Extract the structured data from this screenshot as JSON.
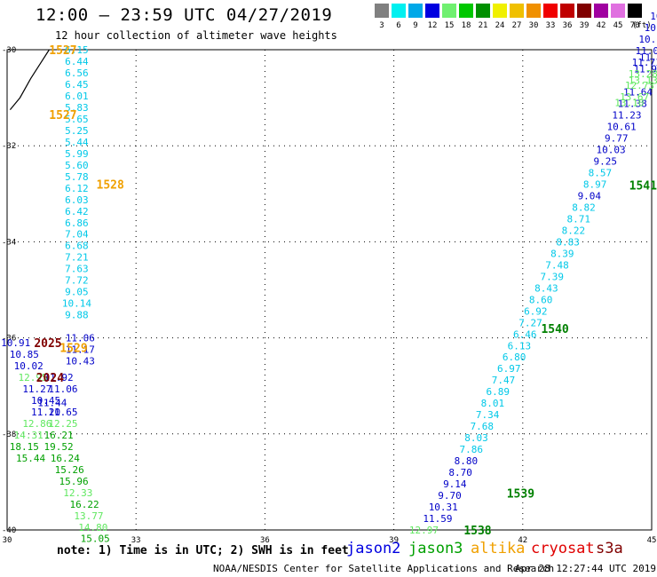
{
  "header": {
    "title": "12:00 – 23:59 UTC 04/27/2019",
    "subtitle": "12 hour collection of altimeter wave heights"
  },
  "color_scale": {
    "unit": "(ft)",
    "bins": [
      {
        "label": "3",
        "color": "#808080"
      },
      {
        "label": "6",
        "color": "#00f0f0"
      },
      {
        "label": "9",
        "color": "#00a8e8"
      },
      {
        "label": "12",
        "color": "#0000e0"
      },
      {
        "label": "15",
        "color": "#70f070"
      },
      {
        "label": "18",
        "color": "#00c800"
      },
      {
        "label": "21",
        "color": "#009000"
      },
      {
        "label": "24",
        "color": "#f0f000"
      },
      {
        "label": "27",
        "color": "#f0c000"
      },
      {
        "label": "30",
        "color": "#f09000"
      },
      {
        "label": "33",
        "color": "#f00000"
      },
      {
        "label": "36",
        "color": "#c00000"
      },
      {
        "label": "39",
        "color": "#800000"
      },
      {
        "label": "42",
        "color": "#a000a0"
      },
      {
        "label": "45",
        "color": "#e070e0"
      },
      {
        "label": "70",
        "color": "#000000"
      }
    ]
  },
  "axes": {
    "lon_ticks": [
      "30",
      "33",
      "36",
      "39",
      "42",
      "45"
    ],
    "lat_ticks": [
      "-30",
      "-32",
      "-34",
      "-36",
      "-38",
      "-40"
    ],
    "lon_range": [
      30,
      45
    ],
    "lat_range": [
      -40,
      -30
    ]
  },
  "colors": {
    "cyan": "#00c8e8",
    "blue": "#0000c8",
    "lightgreen": "#60e860",
    "green": "#00a000",
    "darkgreen": "#008000",
    "orange": "#f0a000",
    "darkred": "#800000"
  },
  "passes": [
    {
      "lon": 31.62,
      "lat": -30.0,
      "lat_step": -0.24,
      "color": "cyan",
      "values": [
        "6.15",
        "6.44",
        "6.56",
        "6.45",
        "6.01",
        "5.83",
        "5.65",
        "5.25",
        "5.44",
        "5.99",
        "5.60",
        "5.78",
        "6.12",
        "6.03",
        "6.42",
        "6.86",
        "7.04",
        "6.68",
        "7.21",
        "7.63",
        "7.72",
        "9.05",
        "10.14",
        "9.88"
      ]
    },
    {
      "lon": 31.7,
      "lat": -36.0,
      "lat_step": -0.24,
      "color": "blue",
      "values": [
        "11.06",
        "11.17",
        "10.43"
      ]
    }
  ],
  "left_cluster": [
    {
      "lon": 30.2,
      "lat": -36.1,
      "value": "10.91",
      "color": "blue"
    },
    {
      "lon": 30.4,
      "lat": -36.34,
      "value": "10.85",
      "color": "blue"
    },
    {
      "lon": 30.5,
      "lat": -36.58,
      "value": "10.02",
      "color": "blue"
    },
    {
      "lon": 30.6,
      "lat": -36.82,
      "value": "12.95",
      "color": "lightgreen"
    },
    {
      "lon": 31.2,
      "lat": -36.82,
      "value": "11.92",
      "color": "blue"
    },
    {
      "lon": 30.7,
      "lat": -37.06,
      "value": "11.27",
      "color": "blue"
    },
    {
      "lon": 31.3,
      "lat": -37.06,
      "value": "11.06",
      "color": "blue"
    },
    {
      "lon": 30.9,
      "lat": -37.3,
      "value": "10.45",
      "color": "blue"
    },
    {
      "lon": 31.05,
      "lat": -37.35,
      "value": "11.44",
      "color": "blue"
    },
    {
      "lon": 30.9,
      "lat": -37.54,
      "value": "11.20",
      "color": "blue"
    },
    {
      "lon": 31.3,
      "lat": -37.54,
      "value": "11.65",
      "color": "blue"
    },
    {
      "lon": 30.7,
      "lat": -37.78,
      "value": "12.86",
      "color": "lightgreen"
    },
    {
      "lon": 31.3,
      "lat": -37.78,
      "value": "12.25",
      "color": "lightgreen"
    },
    {
      "lon": 30.5,
      "lat": -38.02,
      "value": "14.31",
      "color": "lightgreen"
    },
    {
      "lon": 31.2,
      "lat": -38.02,
      "value": "16.21",
      "color": "green"
    },
    {
      "lon": 30.4,
      "lat": -38.26,
      "value": "18.15",
      "color": "green"
    },
    {
      "lon": 31.2,
      "lat": -38.26,
      "value": "19.52",
      "color": "green"
    },
    {
      "lon": 30.55,
      "lat": -38.5,
      "value": "15.44",
      "color": "green"
    },
    {
      "lon": 31.35,
      "lat": -38.5,
      "value": "16.24",
      "color": "green"
    },
    {
      "lon": 31.45,
      "lat": -38.74,
      "value": "15.26",
      "color": "green"
    },
    {
      "lon": 31.55,
      "lat": -38.98,
      "value": "15.96",
      "color": "green"
    },
    {
      "lon": 31.65,
      "lat": -39.22,
      "value": "12.33",
      "color": "lightgreen"
    },
    {
      "lon": 31.8,
      "lat": -39.46,
      "value": "16.22",
      "color": "green"
    },
    {
      "lon": 31.9,
      "lat": -39.7,
      "value": "13.77",
      "color": "lightgreen"
    },
    {
      "lon": 32.0,
      "lat": -39.94,
      "value": "14.80",
      "color": "lightgreen"
    },
    {
      "lon": 32.05,
      "lat": -40.18,
      "value": "15.05",
      "color": "green"
    }
  ],
  "right_track": [
    {
      "lon": 39.7,
      "lat": -40.0,
      "value": "12.97",
      "color": "lightgreen"
    },
    {
      "lon": 40.02,
      "lat": -39.76,
      "value": "11.59",
      "color": "blue"
    },
    {
      "lon": 40.15,
      "lat": -39.52,
      "value": "10.31",
      "color": "blue"
    },
    {
      "lon": 40.3,
      "lat": -39.28,
      "value": "9.70",
      "color": "blue"
    },
    {
      "lon": 40.42,
      "lat": -39.04,
      "value": "9.14",
      "color": "blue"
    },
    {
      "lon": 40.55,
      "lat": -38.8,
      "value": "8.70",
      "color": "blue"
    },
    {
      "lon": 40.68,
      "lat": -38.56,
      "value": "8.80",
      "color": "blue"
    },
    {
      "lon": 40.8,
      "lat": -38.32,
      "value": "7.86",
      "color": "cyan"
    },
    {
      "lon": 40.92,
      "lat": -38.08,
      "value": "8.03",
      "color": "cyan"
    },
    {
      "lon": 41.05,
      "lat": -37.84,
      "value": "7.68",
      "color": "cyan"
    },
    {
      "lon": 41.18,
      "lat": -37.6,
      "value": "7.34",
      "color": "cyan"
    },
    {
      "lon": 41.3,
      "lat": -37.36,
      "value": "8.01",
      "color": "cyan"
    },
    {
      "lon": 41.42,
      "lat": -37.12,
      "value": "6.89",
      "color": "cyan"
    },
    {
      "lon": 41.55,
      "lat": -36.88,
      "value": "7.47",
      "color": "cyan"
    },
    {
      "lon": 41.68,
      "lat": -36.64,
      "value": "6.97",
      "color": "cyan"
    },
    {
      "lon": 41.8,
      "lat": -36.4,
      "value": "6.80",
      "color": "cyan"
    },
    {
      "lon": 41.92,
      "lat": -36.16,
      "value": "6.13",
      "color": "cyan"
    },
    {
      "lon": 42.05,
      "lat": -35.92,
      "value": "6.46",
      "color": "cyan"
    },
    {
      "lon": 42.18,
      "lat": -35.68,
      "value": "7.27",
      "color": "cyan"
    },
    {
      "lon": 42.3,
      "lat": -35.44,
      "value": "6.92",
      "color": "cyan"
    },
    {
      "lon": 42.42,
      "lat": -35.2,
      "value": "8.60",
      "color": "cyan"
    },
    {
      "lon": 42.55,
      "lat": -34.96,
      "value": "8.43",
      "color": "cyan"
    },
    {
      "lon": 42.68,
      "lat": -34.72,
      "value": "7.39",
      "color": "cyan"
    },
    {
      "lon": 42.8,
      "lat": -34.48,
      "value": "7.48",
      "color": "cyan"
    },
    {
      "lon": 42.92,
      "lat": -34.24,
      "value": "8.39",
      "color": "cyan"
    },
    {
      "lon": 43.05,
      "lat": -34.0,
      "value": "8.83",
      "color": "cyan"
    },
    {
      "lon": 43.18,
      "lat": -33.76,
      "value": "8.22",
      "color": "cyan"
    },
    {
      "lon": 43.3,
      "lat": -33.52,
      "value": "8.71",
      "color": "cyan"
    },
    {
      "lon": 43.42,
      "lat": -33.28,
      "value": "8.82",
      "color": "cyan"
    },
    {
      "lon": 43.55,
      "lat": -33.04,
      "value": "9.04",
      "color": "blue"
    },
    {
      "lon": 43.68,
      "lat": -32.8,
      "value": "8.97",
      "color": "cyan"
    },
    {
      "lon": 43.8,
      "lat": -32.56,
      "value": "8.57",
      "color": "cyan"
    },
    {
      "lon": 43.92,
      "lat": -32.32,
      "value": "9.25",
      "color": "blue"
    },
    {
      "lon": 44.05,
      "lat": -32.08,
      "value": "10.03",
      "color": "blue"
    },
    {
      "lon": 44.18,
      "lat": -31.84,
      "value": "9.77",
      "color": "blue"
    },
    {
      "lon": 44.3,
      "lat": -31.6,
      "value": "10.61",
      "color": "blue"
    },
    {
      "lon": 44.42,
      "lat": -31.36,
      "value": "11.23",
      "color": "blue"
    },
    {
      "lon": 44.55,
      "lat": -31.12,
      "value": "11.38",
      "color": "blue"
    },
    {
      "lon": 44.68,
      "lat": -30.88,
      "value": "11.64",
      "color": "blue"
    },
    {
      "lon": 44.8,
      "lat": -30.64,
      "value": "13.13",
      "color": "lightgreen"
    },
    {
      "lon": 44.92,
      "lat": -30.4,
      "value": "11.97",
      "color": "blue"
    },
    {
      "lon": 45.05,
      "lat": -30.16,
      "value": "11.25",
      "color": "blue"
    }
  ],
  "right_top": [
    {
      "lon": 44.48,
      "lat": -31.1,
      "value": "13.10",
      "color": "lightgreen"
    },
    {
      "lon": 44.6,
      "lat": -30.98,
      "value": "13.67",
      "color": "lightgreen"
    },
    {
      "lon": 44.72,
      "lat": -30.74,
      "value": "12.73",
      "color": "lightgreen"
    },
    {
      "lon": 44.8,
      "lat": -30.5,
      "value": "13.28",
      "color": "lightgreen"
    },
    {
      "lon": 44.88,
      "lat": -30.26,
      "value": "11.71",
      "color": "blue"
    },
    {
      "lon": 44.96,
      "lat": -30.02,
      "value": "11.03",
      "color": "blue"
    },
    {
      "lon": 45.04,
      "lat": -29.78,
      "value": "10.77",
      "color": "blue"
    },
    {
      "lon": 45.1,
      "lat": -29.54,
      "value": "10.2",
      "color": "blue"
    },
    {
      "lon": 45.1,
      "lat": -29.3,
      "value": "10",
      "color": "blue"
    }
  ],
  "time_labels": [
    {
      "lon": 31.3,
      "lat": -30.0,
      "text": "1527",
      "color": "orange"
    },
    {
      "lon": 31.3,
      "lat": -31.35,
      "text": "1527",
      "color": "orange"
    },
    {
      "lon": 32.4,
      "lat": -32.8,
      "text": "1528",
      "color": "orange"
    },
    {
      "lon": 31.55,
      "lat": -36.2,
      "text": "1529",
      "color": "orange"
    },
    {
      "lon": 30.95,
      "lat": -36.1,
      "text": "2025",
      "color": "darkred"
    },
    {
      "lon": 31.0,
      "lat": -36.82,
      "text": "2024",
      "color": "darkred"
    },
    {
      "lon": 42.75,
      "lat": -35.8,
      "text": "1540",
      "color": "darkgreen"
    },
    {
      "lon": 44.8,
      "lat": -32.82,
      "text": "1541",
      "color": "darkgreen"
    },
    {
      "lon": 41.95,
      "lat": -39.23,
      "text": "1539",
      "color": "darkgreen"
    },
    {
      "lon": 40.95,
      "lat": -40.0,
      "text": "1538",
      "color": "darkgreen"
    }
  ],
  "note": "note:  1) Time is in UTC;  2) SWH is in feet",
  "legend": [
    {
      "label": "jason2",
      "color": "#0000e0"
    },
    {
      "label": "jason3",
      "color": "#00a000"
    },
    {
      "label": "altika",
      "color": "#f0a000"
    },
    {
      "label": "cryosat",
      "color": "#e00000"
    },
    {
      "label": "s3a",
      "color": "#800000"
    }
  ],
  "footer": {
    "credit": "NOAA/NESDIS Center for Satellite Applications and Research",
    "timestamp": "Apr 28 12:27:44 UTC 2019"
  }
}
